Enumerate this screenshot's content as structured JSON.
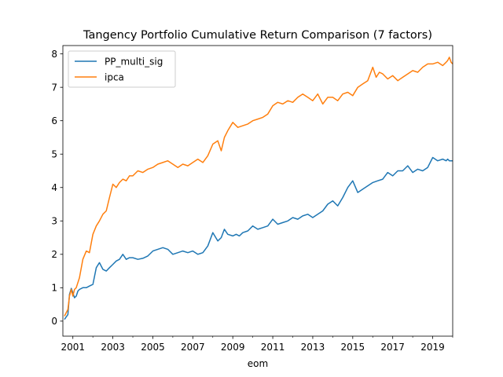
{
  "chart_data": {
    "type": "line",
    "title": "Tangency Portfolio Cumulative Return Comparison (7 factors)",
    "xlabel": "eom",
    "ylabel": "",
    "xlim": [
      2000.5,
      2020.0
    ],
    "ylim": [
      -0.45,
      8.25
    ],
    "x_ticks": [
      2001,
      2003,
      2005,
      2007,
      2009,
      2011,
      2013,
      2015,
      2017,
      2019
    ],
    "x_tick_labels": [
      "2001",
      "2003",
      "2005",
      "2007",
      "2009",
      "2011",
      "2013",
      "2015",
      "2017",
      "2019"
    ],
    "y_ticks": [
      0,
      1,
      2,
      3,
      4,
      5,
      6,
      7,
      8
    ],
    "y_tick_labels": [
      "0",
      "1",
      "2",
      "3",
      "4",
      "5",
      "6",
      "7",
      "8"
    ],
    "grid": false,
    "legend_position": "top-left",
    "series": [
      {
        "name": "PP_multi_sig",
        "color": "#1f77b4",
        "x": [
          2000.58,
          2000.75,
          2000.83,
          2000.92,
          2001.0,
          2001.08,
          2001.17,
          2001.25,
          2001.33,
          2001.5,
          2001.67,
          2001.83,
          2002.0,
          2002.17,
          2002.33,
          2002.5,
          2002.67,
          2002.83,
          2003.0,
          2003.17,
          2003.33,
          2003.5,
          2003.67,
          2003.83,
          2004.0,
          2004.25,
          2004.5,
          2004.75,
          2005.0,
          2005.25,
          2005.5,
          2005.75,
          2006.0,
          2006.25,
          2006.5,
          2006.75,
          2007.0,
          2007.25,
          2007.5,
          2007.75,
          2008.0,
          2008.25,
          2008.42,
          2008.58,
          2008.75,
          2009.0,
          2009.17,
          2009.33,
          2009.5,
          2009.75,
          2010.0,
          2010.25,
          2010.5,
          2010.75,
          2011.0,
          2011.25,
          2011.5,
          2011.75,
          2012.0,
          2012.25,
          2012.5,
          2012.75,
          2013.0,
          2013.25,
          2013.5,
          2013.75,
          2014.0,
          2014.25,
          2014.5,
          2014.75,
          2015.0,
          2015.25,
          2015.5,
          2015.75,
          2016.0,
          2016.25,
          2016.5,
          2016.75,
          2017.0,
          2017.25,
          2017.5,
          2017.75,
          2018.0,
          2018.25,
          2018.5,
          2018.75,
          2019.0,
          2019.25,
          2019.5,
          2019.67,
          2019.75,
          2019.83,
          2020.0
        ],
        "values": [
          0.05,
          0.2,
          0.8,
          0.98,
          0.85,
          0.7,
          0.75,
          0.9,
          0.95,
          1.0,
          1.0,
          1.05,
          1.1,
          1.6,
          1.75,
          1.55,
          1.5,
          1.6,
          1.7,
          1.8,
          1.85,
          2.0,
          1.85,
          1.9,
          1.9,
          1.85,
          1.88,
          1.95,
          2.1,
          2.15,
          2.2,
          2.15,
          2.0,
          2.05,
          2.1,
          2.05,
          2.1,
          2.0,
          2.05,
          2.25,
          2.65,
          2.4,
          2.5,
          2.75,
          2.6,
          2.55,
          2.6,
          2.55,
          2.65,
          2.7,
          2.85,
          2.75,
          2.8,
          2.85,
          3.05,
          2.9,
          2.95,
          3.0,
          3.1,
          3.05,
          3.15,
          3.2,
          3.1,
          3.2,
          3.3,
          3.5,
          3.6,
          3.45,
          3.7,
          4.0,
          4.2,
          3.85,
          3.95,
          4.05,
          4.15,
          4.2,
          4.25,
          4.45,
          4.35,
          4.5,
          4.5,
          4.65,
          4.45,
          4.55,
          4.5,
          4.6,
          4.9,
          4.8,
          4.85,
          4.8,
          4.85,
          4.8,
          4.8
        ]
      },
      {
        "name": "ipca",
        "color": "#ff7f0e",
        "x": [
          2000.58,
          2000.75,
          2000.83,
          2000.92,
          2001.0,
          2001.08,
          2001.17,
          2001.33,
          2001.5,
          2001.67,
          2001.83,
          2002.0,
          2002.17,
          2002.33,
          2002.5,
          2002.67,
          2002.83,
          2003.0,
          2003.17,
          2003.33,
          2003.5,
          2003.67,
          2003.83,
          2004.0,
          2004.25,
          2004.5,
          2004.75,
          2005.0,
          2005.25,
          2005.5,
          2005.75,
          2006.0,
          2006.25,
          2006.5,
          2006.75,
          2007.0,
          2007.25,
          2007.5,
          2007.75,
          2008.0,
          2008.25,
          2008.42,
          2008.58,
          2008.75,
          2009.0,
          2009.25,
          2009.5,
          2009.75,
          2010.0,
          2010.25,
          2010.5,
          2010.75,
          2011.0,
          2011.25,
          2011.5,
          2011.75,
          2012.0,
          2012.25,
          2012.5,
          2012.75,
          2013.0,
          2013.25,
          2013.5,
          2013.75,
          2014.0,
          2014.25,
          2014.5,
          2014.75,
          2015.0,
          2015.25,
          2015.5,
          2015.75,
          2016.0,
          2016.17,
          2016.33,
          2016.5,
          2016.75,
          2017.0,
          2017.25,
          2017.5,
          2017.75,
          2018.0,
          2018.25,
          2018.5,
          2018.75,
          2019.0,
          2019.25,
          2019.5,
          2019.67,
          2019.75,
          2019.83,
          2019.92,
          2020.0
        ],
        "values": [
          0.15,
          0.35,
          0.75,
          0.95,
          0.75,
          0.95,
          1.0,
          1.3,
          1.85,
          2.1,
          2.05,
          2.6,
          2.85,
          3.0,
          3.2,
          3.3,
          3.7,
          4.1,
          4.0,
          4.15,
          4.25,
          4.2,
          4.35,
          4.35,
          4.5,
          4.45,
          4.55,
          4.6,
          4.7,
          4.75,
          4.8,
          4.7,
          4.6,
          4.7,
          4.65,
          4.75,
          4.85,
          4.75,
          4.95,
          5.3,
          5.4,
          5.1,
          5.5,
          5.7,
          5.95,
          5.8,
          5.85,
          5.9,
          6.0,
          6.05,
          6.1,
          6.2,
          6.45,
          6.55,
          6.5,
          6.6,
          6.55,
          6.7,
          6.8,
          6.7,
          6.6,
          6.8,
          6.5,
          6.7,
          6.7,
          6.6,
          6.8,
          6.85,
          6.75,
          7.0,
          7.1,
          7.2,
          7.6,
          7.3,
          7.45,
          7.4,
          7.25,
          7.35,
          7.2,
          7.3,
          7.4,
          7.5,
          7.45,
          7.6,
          7.7,
          7.7,
          7.75,
          7.65,
          7.75,
          7.8,
          7.9,
          7.75,
          7.7
        ]
      }
    ]
  }
}
